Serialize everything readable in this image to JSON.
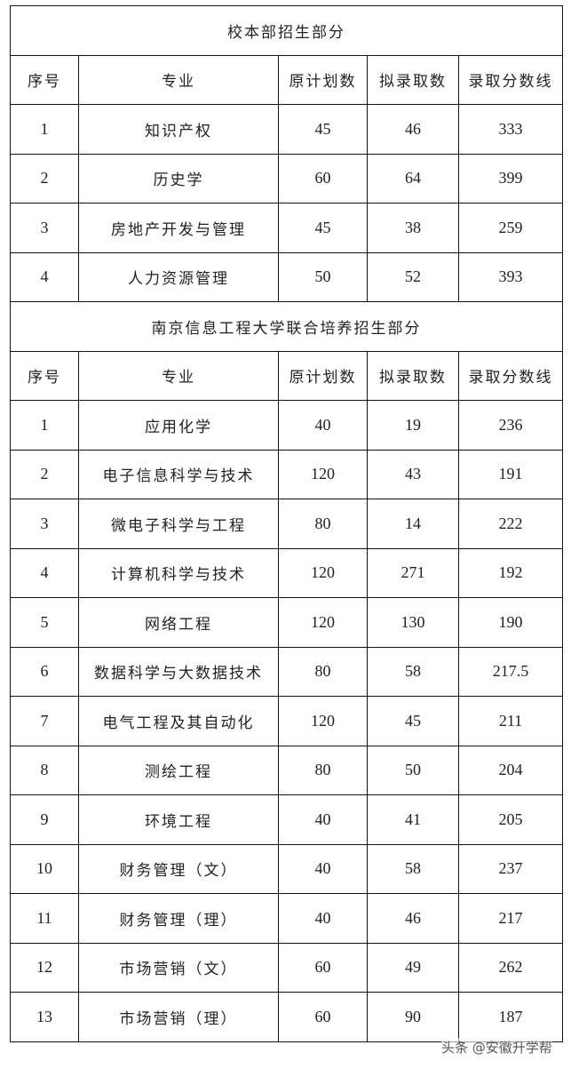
{
  "sections": [
    {
      "title": "校本部招生部分",
      "headers": [
        "序号",
        "专业",
        "原计划数",
        "拟录取数",
        "录取分数线"
      ],
      "rows": [
        [
          "1",
          "知识产权",
          "45",
          "46",
          "333"
        ],
        [
          "2",
          "历史学",
          "60",
          "64",
          "399"
        ],
        [
          "3",
          "房地产开发与管理",
          "45",
          "38",
          "259"
        ],
        [
          "4",
          "人力资源管理",
          "50",
          "52",
          "393"
        ]
      ]
    },
    {
      "title": "南京信息工程大学联合培养招生部分",
      "headers": [
        "序号",
        "专业",
        "原计划数",
        "拟录取数",
        "录取分数线"
      ],
      "rows": [
        [
          "1",
          "应用化学",
          "40",
          "19",
          "236"
        ],
        [
          "2",
          "电子信息科学与技术",
          "120",
          "43",
          "191"
        ],
        [
          "3",
          "微电子科学与工程",
          "80",
          "14",
          "222"
        ],
        [
          "4",
          "计算机科学与技术",
          "120",
          "271",
          "192"
        ],
        [
          "5",
          "网络工程",
          "120",
          "130",
          "190"
        ],
        [
          "6",
          "数据科学与大数据技术",
          "80",
          "58",
          "217.5"
        ],
        [
          "7",
          "电气工程及其自动化",
          "120",
          "45",
          "211"
        ],
        [
          "8",
          "测绘工程",
          "80",
          "50",
          "204"
        ],
        [
          "9",
          "环境工程",
          "40",
          "41",
          "205"
        ],
        [
          "10",
          "财务管理（文）",
          "40",
          "58",
          "237"
        ],
        [
          "11",
          "财务管理（理）",
          "40",
          "46",
          "217"
        ],
        [
          "12",
          "市场营销（文）",
          "60",
          "49",
          "262"
        ],
        [
          "13",
          "市场营销（理）",
          "60",
          "90",
          "187"
        ]
      ]
    }
  ],
  "watermark": "头条 @安徽升学帮"
}
